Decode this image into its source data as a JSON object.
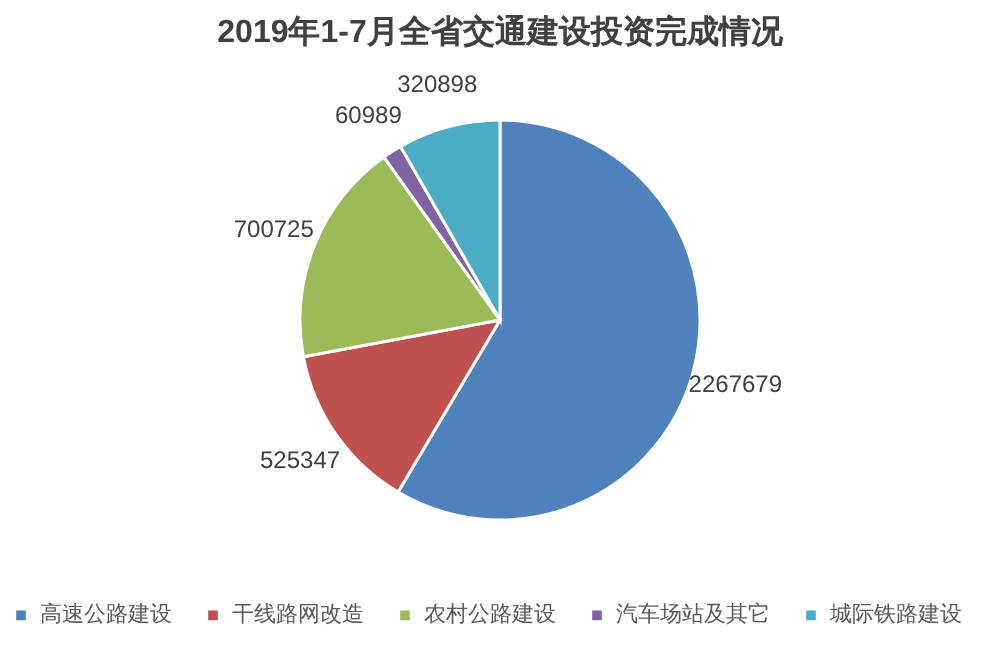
{
  "chart_data": {
    "type": "pie",
    "title": "2019年1-7月全省交通建设投资完成情况",
    "categories": [
      "高速公路建设",
      "干线路网改造",
      "农村公路建设",
      "汽车场站及其它",
      "城际铁路建设"
    ],
    "values": [
      2267679,
      525347,
      700725,
      60989,
      320898
    ],
    "colors": [
      "#4f81bd",
      "#c0504d",
      "#9bbb59",
      "#8064a2",
      "#4bacc6"
    ],
    "data_labels": true,
    "legend": "bottom"
  }
}
